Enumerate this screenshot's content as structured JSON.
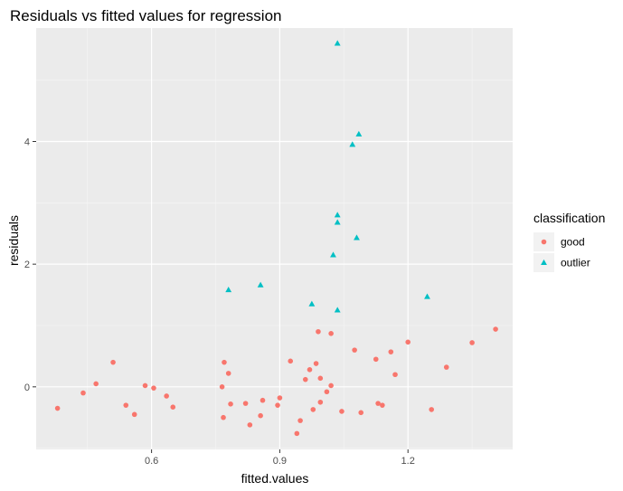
{
  "chart_data": {
    "type": "scatter",
    "title": "Residuals vs fitted values for regression",
    "xlabel": "fitted.values",
    "ylabel": "residuals",
    "xlim": [
      0.33,
      1.445
    ],
    "ylim": [
      -1.02,
      5.85
    ],
    "x_ticks": [
      0.6,
      0.9,
      1.2
    ],
    "x_tick_labels": [
      "0.6",
      "0.9",
      "1.2"
    ],
    "x_minor": [
      0.45,
      0.75,
      1.05,
      1.35
    ],
    "y_ticks": [
      0,
      2,
      4
    ],
    "y_tick_labels": [
      "0",
      "2",
      "4"
    ],
    "y_minor": [
      -1,
      1,
      3,
      5
    ],
    "grid": true,
    "legend": {
      "title": "classification",
      "position": "right"
    },
    "series": [
      {
        "name": "good",
        "color": "#F8766D",
        "shape": "circle",
        "points": [
          [
            0.38,
            -0.35
          ],
          [
            0.44,
            -0.1
          ],
          [
            0.47,
            0.05
          ],
          [
            0.51,
            0.4
          ],
          [
            0.54,
            -0.3
          ],
          [
            0.56,
            -0.45
          ],
          [
            0.585,
            0.02
          ],
          [
            0.605,
            -0.02
          ],
          [
            0.635,
            -0.15
          ],
          [
            0.65,
            -0.33
          ],
          [
            0.765,
            0.0
          ],
          [
            0.77,
            0.4
          ],
          [
            0.768,
            -0.5
          ],
          [
            0.78,
            0.22
          ],
          [
            0.785,
            -0.28
          ],
          [
            0.82,
            -0.27
          ],
          [
            0.83,
            -0.62
          ],
          [
            0.855,
            -0.47
          ],
          [
            0.86,
            -0.22
          ],
          [
            0.895,
            -0.3
          ],
          [
            0.9,
            -0.18
          ],
          [
            0.925,
            0.42
          ],
          [
            0.94,
            -0.76
          ],
          [
            0.948,
            -0.55
          ],
          [
            0.96,
            0.12
          ],
          [
            0.97,
            0.28
          ],
          [
            0.978,
            -0.37
          ],
          [
            0.985,
            0.38
          ],
          [
            0.99,
            0.9
          ],
          [
            0.995,
            0.14
          ],
          [
            0.995,
            -0.25
          ],
          [
            1.01,
            -0.08
          ],
          [
            1.02,
            0.87
          ],
          [
            1.02,
            0.02
          ],
          [
            1.045,
            -0.4
          ],
          [
            1.075,
            0.6
          ],
          [
            1.09,
            -0.42
          ],
          [
            1.125,
            0.45
          ],
          [
            1.13,
            -0.27
          ],
          [
            1.14,
            -0.3
          ],
          [
            1.16,
            0.57
          ],
          [
            1.17,
            0.2
          ],
          [
            1.2,
            0.73
          ],
          [
            1.255,
            -0.37
          ],
          [
            1.29,
            0.32
          ],
          [
            1.35,
            0.72
          ],
          [
            1.405,
            0.94
          ]
        ]
      },
      {
        "name": "outlier",
        "color": "#00BFC4",
        "shape": "triangle",
        "points": [
          [
            1.035,
            5.6
          ],
          [
            1.085,
            4.12
          ],
          [
            1.07,
            3.95
          ],
          [
            1.035,
            2.8
          ],
          [
            1.035,
            2.68
          ],
          [
            1.08,
            2.43
          ],
          [
            1.025,
            2.15
          ],
          [
            0.78,
            1.58
          ],
          [
            0.855,
            1.66
          ],
          [
            1.245,
            1.47
          ],
          [
            0.975,
            1.35
          ],
          [
            1.035,
            1.25
          ]
        ]
      }
    ]
  }
}
